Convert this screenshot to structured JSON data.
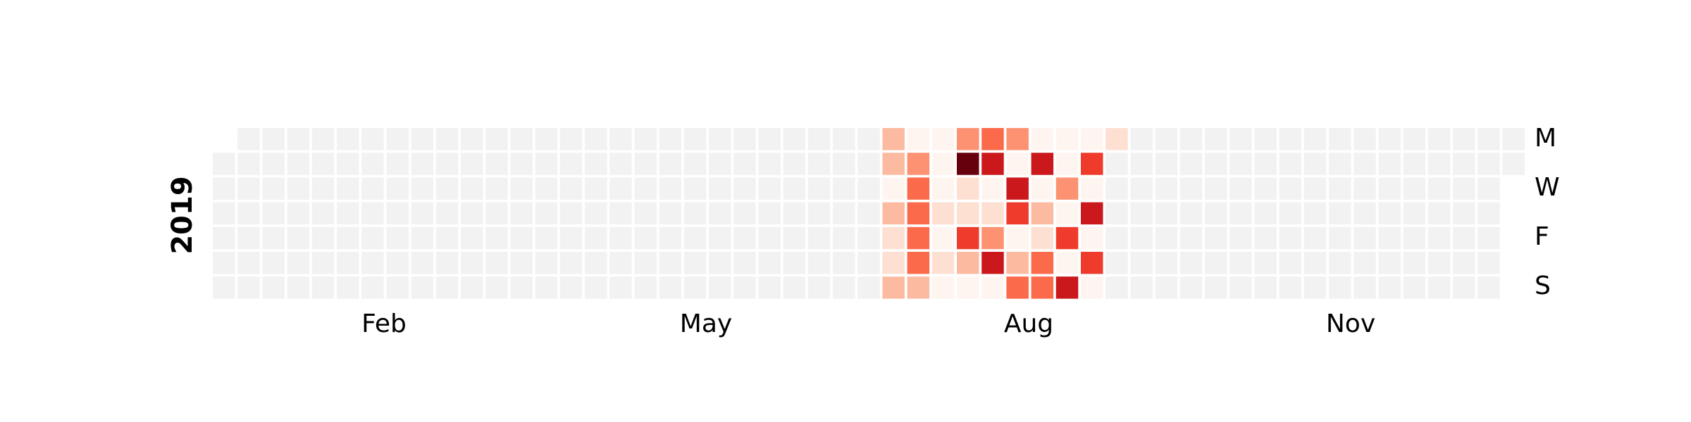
{
  "chart_data": {
    "type": "heatmap",
    "title": "",
    "year_label": "2019",
    "month_labels": [
      "Feb",
      "May",
      "Aug",
      "Nov"
    ],
    "day_labels": [
      "M",
      "W",
      "F",
      "S"
    ],
    "colors": {
      "empty": "#f2f2f2",
      "scale": [
        "#fff5f0",
        "#fee0d2",
        "#fcbba1",
        "#fc9272",
        "#fb6a4a",
        "#ef3b2c",
        "#cb181d",
        "#a50f15",
        "#67000d"
      ]
    },
    "date_range": [
      "2019-01-01",
      "2019-12-31"
    ],
    "active_values": {
      "2019-07-08": 2,
      "2019-07-09": 2,
      "2019-07-10": 0,
      "2019-07-11": 2,
      "2019-07-12": 1,
      "2019-07-13": 1,
      "2019-07-14": 2,
      "2019-07-15": 0,
      "2019-07-16": 3,
      "2019-07-17": 4,
      "2019-07-18": 4,
      "2019-07-19": 4,
      "2019-07-20": 4,
      "2019-07-21": 2,
      "2019-07-22": 0,
      "2019-07-23": 0,
      "2019-07-24": 0,
      "2019-07-25": 1,
      "2019-07-26": 0,
      "2019-07-27": 1,
      "2019-07-28": 0,
      "2019-07-29": 3,
      "2019-07-30": 8,
      "2019-07-31": 1,
      "2019-08-01": 1,
      "2019-08-02": 5,
      "2019-08-03": 2,
      "2019-08-04": 0,
      "2019-08-05": 4,
      "2019-08-06": 6,
      "2019-08-07": 0,
      "2019-08-08": 1,
      "2019-08-09": 3,
      "2019-08-10": 6,
      "2019-08-11": 0,
      "2019-08-12": 3,
      "2019-08-13": 0,
      "2019-08-14": 6,
      "2019-08-15": 5,
      "2019-08-16": 0,
      "2019-08-17": 2,
      "2019-08-18": 4,
      "2019-08-19": 0,
      "2019-08-20": 6,
      "2019-08-21": 0,
      "2019-08-22": 2,
      "2019-08-23": 1,
      "2019-08-24": 4,
      "2019-08-25": 4,
      "2019-08-26": 0,
      "2019-08-27": 0,
      "2019-08-28": 3,
      "2019-08-29": 0,
      "2019-08-30": 5,
      "2019-08-31": 0,
      "2019-09-01": 6,
      "2019-09-02": 0,
      "2019-09-03": 5,
      "2019-09-04": 0,
      "2019-09-05": 6,
      "2019-09-06": 0,
      "2019-09-07": 5,
      "2019-09-08": 0,
      "2019-09-09": 1
    }
  }
}
